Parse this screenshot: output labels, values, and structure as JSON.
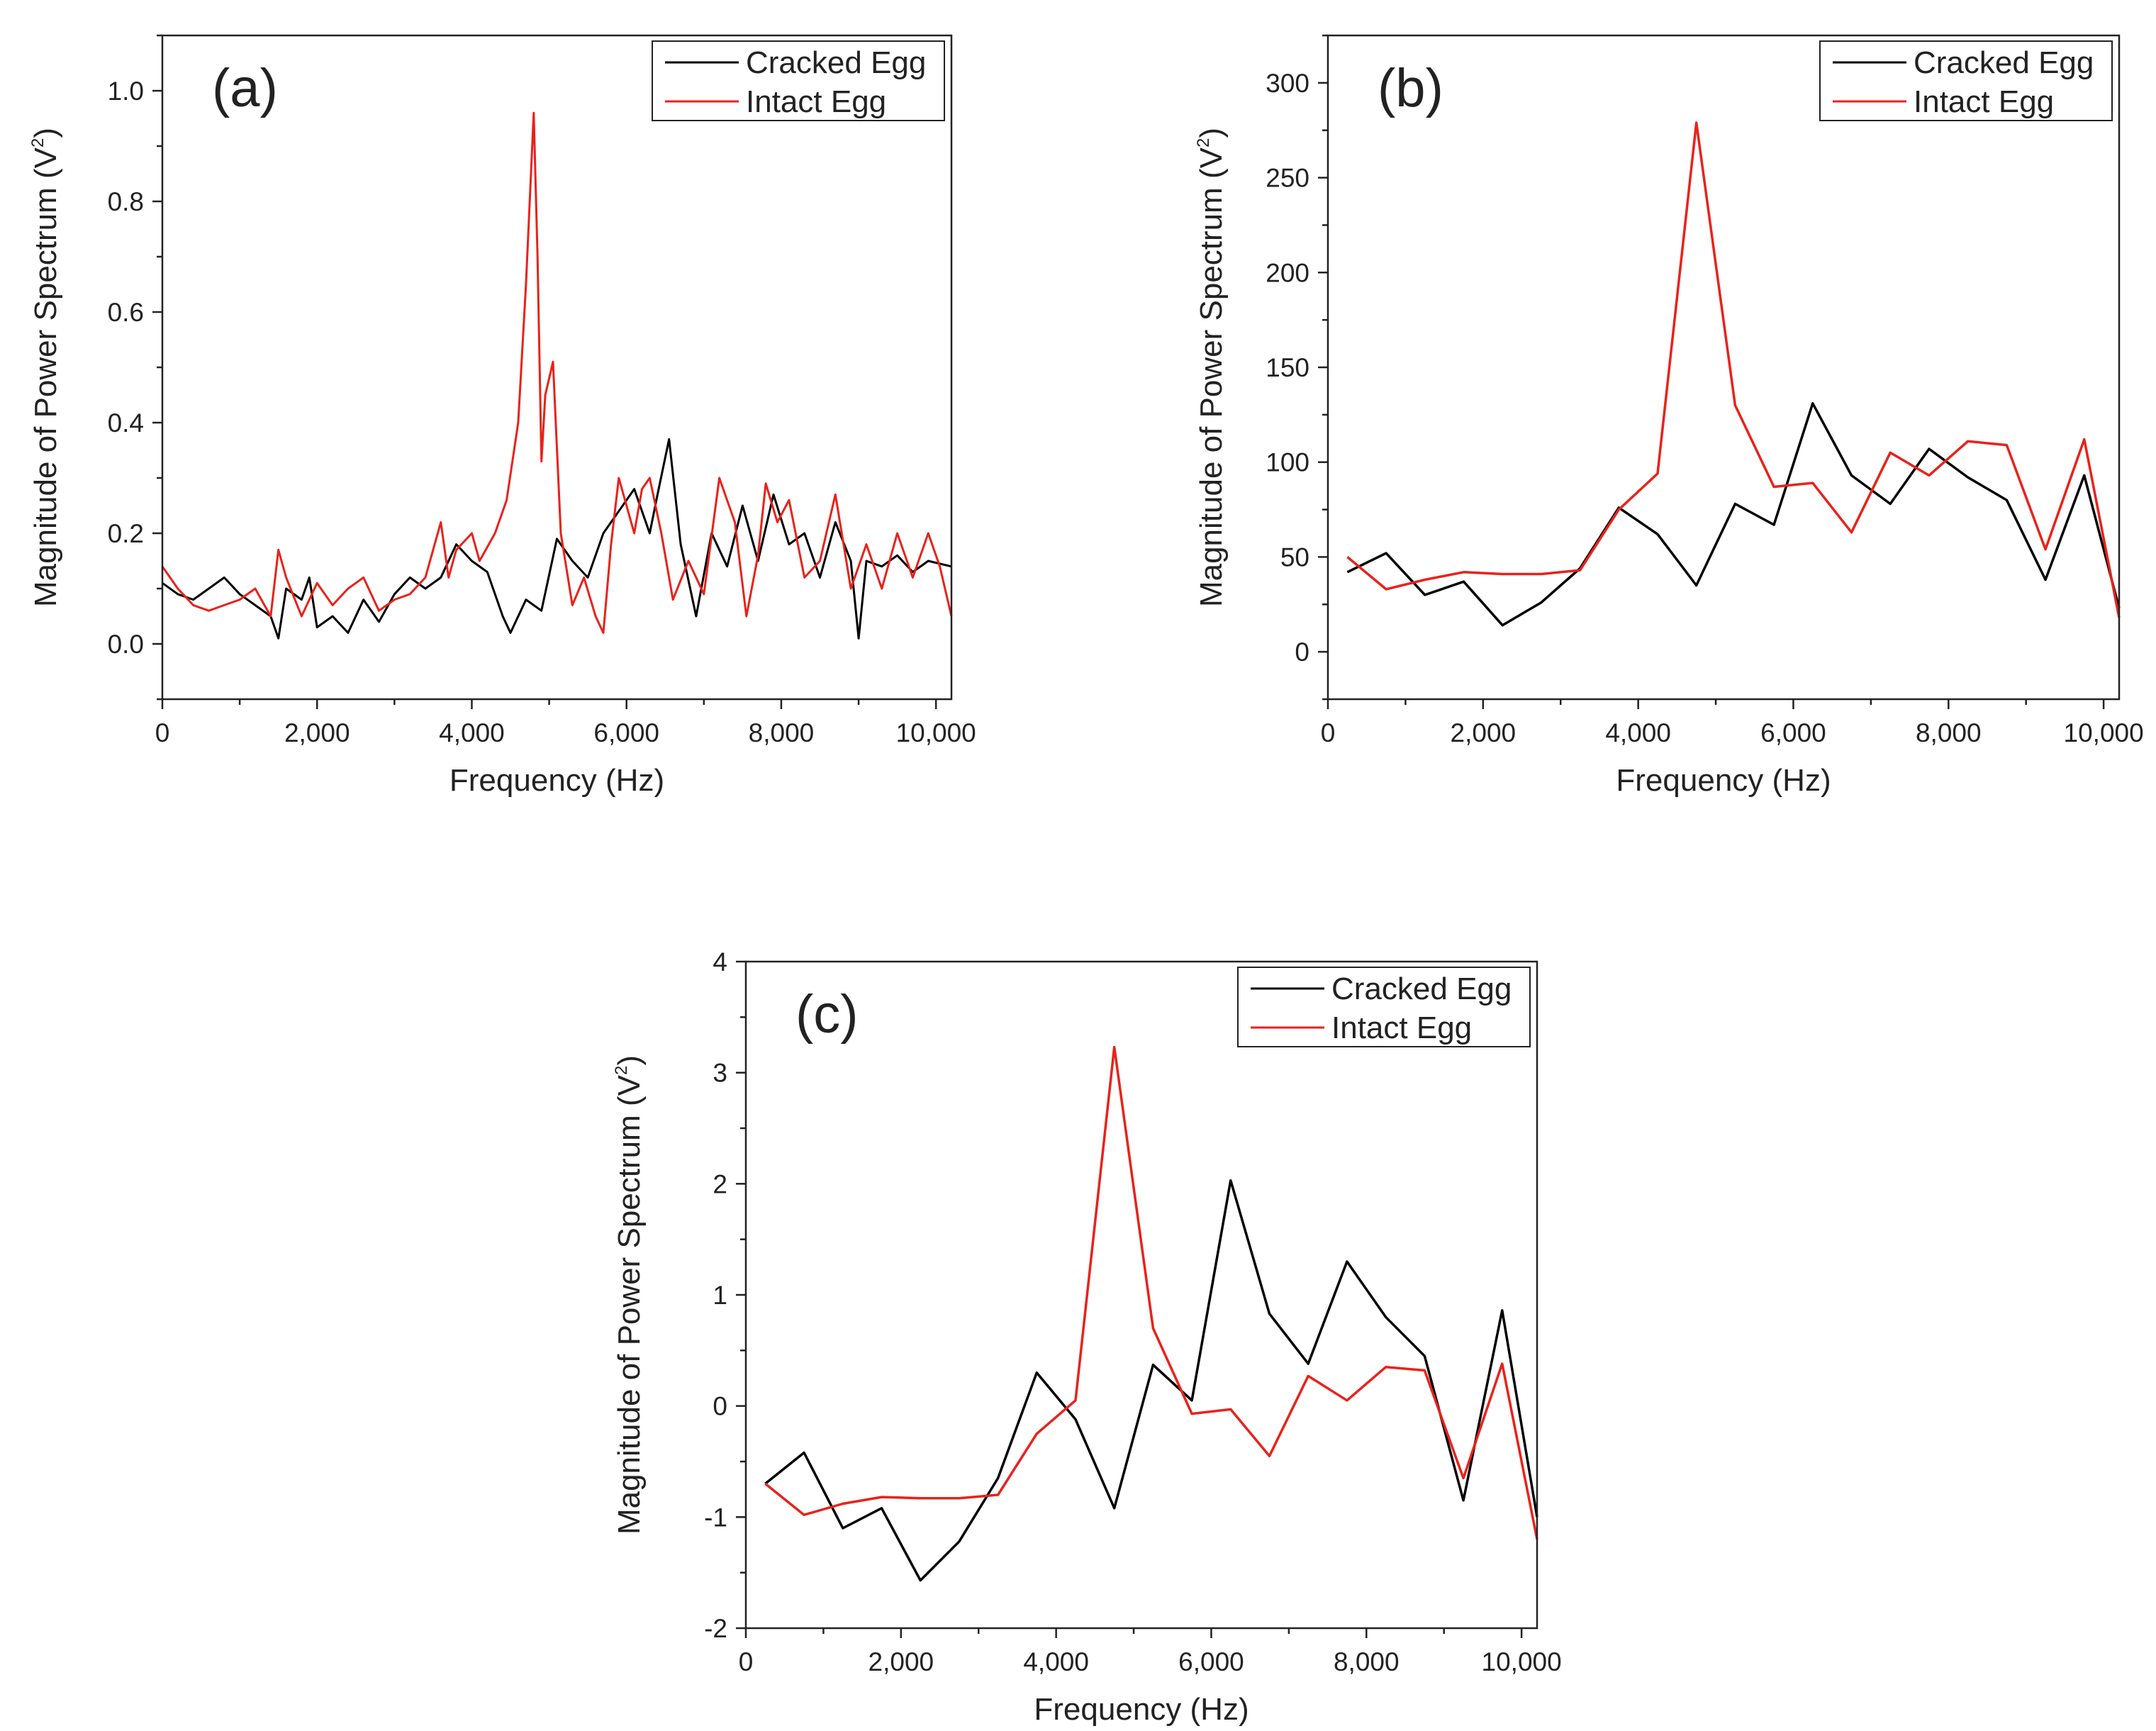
{
  "chart_data": [
    {
      "type": "line",
      "panel_label": "(a)",
      "xlabel": "Frequency (Hz)",
      "ylabel_main": "Magnitude of Power Spectrum (V",
      "ylabel_sup": "2",
      "ylabel_end": ")",
      "xlim": [
        0,
        10200
      ],
      "ylim": [
        -0.1,
        1.1
      ],
      "x_ticks": [
        0,
        2000,
        4000,
        6000,
        8000,
        10000
      ],
      "x_tick_labels": [
        "0",
        "2,000",
        "4,000",
        "6,000",
        "8,000",
        "10,000"
      ],
      "y_ticks": [
        0.0,
        0.2,
        0.4,
        0.6,
        0.8,
        1.0
      ],
      "y_tick_labels": [
        "0.0",
        "0.2",
        "0.4",
        "0.6",
        "0.8",
        "1.0"
      ],
      "legend_position": "top-right",
      "grid": false,
      "series": [
        {
          "name": "Cracked Egg",
          "color": "#000000",
          "x": [
            0,
            200,
            400,
            600,
            800,
            1000,
            1200,
            1400,
            1500,
            1600,
            1800,
            1900,
            2000,
            2200,
            2400,
            2600,
            2800,
            3000,
            3200,
            3400,
            3600,
            3800,
            4000,
            4200,
            4400,
            4500,
            4700,
            4900,
            5100,
            5300,
            5500,
            5700,
            5900,
            6100,
            6300,
            6400,
            6550,
            6700,
            6900,
            7100,
            7300,
            7500,
            7700,
            7900,
            8100,
            8300,
            8500,
            8700,
            8900,
            9000,
            9100,
            9300,
            9500,
            9700,
            9900,
            10200
          ],
          "y": [
            0.11,
            0.09,
            0.08,
            0.1,
            0.12,
            0.09,
            0.07,
            0.05,
            0.01,
            0.1,
            0.08,
            0.12,
            0.03,
            0.05,
            0.02,
            0.08,
            0.04,
            0.09,
            0.12,
            0.1,
            0.12,
            0.18,
            0.15,
            0.13,
            0.05,
            0.02,
            0.08,
            0.06,
            0.19,
            0.15,
            0.12,
            0.2,
            0.24,
            0.28,
            0.2,
            0.27,
            0.37,
            0.18,
            0.05,
            0.2,
            0.14,
            0.25,
            0.15,
            0.27,
            0.18,
            0.2,
            0.12,
            0.22,
            0.15,
            0.01,
            0.15,
            0.14,
            0.16,
            0.13,
            0.15,
            0.14
          ]
        },
        {
          "name": "Intact Egg",
          "color": "#e8221b",
          "x": [
            0,
            200,
            400,
            600,
            800,
            1000,
            1200,
            1400,
            1500,
            1600,
            1800,
            2000,
            2200,
            2400,
            2600,
            2800,
            3000,
            3200,
            3400,
            3600,
            3700,
            3800,
            4000,
            4100,
            4300,
            4450,
            4600,
            4700,
            4800,
            4850,
            4900,
            4950,
            5050,
            5150,
            5300,
            5450,
            5600,
            5700,
            5800,
            5900,
            6100,
            6200,
            6300,
            6450,
            6600,
            6800,
            7000,
            7200,
            7400,
            7550,
            7700,
            7800,
            7950,
            8100,
            8300,
            8500,
            8700,
            8900,
            9100,
            9300,
            9500,
            9700,
            9900,
            10050,
            10200
          ],
          "y": [
            0.14,
            0.1,
            0.07,
            0.06,
            0.07,
            0.08,
            0.1,
            0.05,
            0.17,
            0.12,
            0.05,
            0.11,
            0.07,
            0.1,
            0.12,
            0.06,
            0.08,
            0.09,
            0.12,
            0.22,
            0.12,
            0.17,
            0.2,
            0.15,
            0.2,
            0.26,
            0.4,
            0.65,
            0.96,
            0.7,
            0.33,
            0.45,
            0.51,
            0.2,
            0.07,
            0.12,
            0.05,
            0.02,
            0.18,
            0.3,
            0.2,
            0.28,
            0.3,
            0.2,
            0.08,
            0.15,
            0.09,
            0.3,
            0.22,
            0.05,
            0.16,
            0.29,
            0.22,
            0.26,
            0.12,
            0.15,
            0.27,
            0.1,
            0.18,
            0.1,
            0.2,
            0.12,
            0.2,
            0.14,
            0.05
          ]
        }
      ]
    },
    {
      "type": "line",
      "panel_label": "(b)",
      "xlabel": "Frequency (Hz)",
      "ylabel_main": "Magnitude of Power Spectrum (V",
      "ylabel_sup": "2",
      "ylabel_end": ")",
      "xlim": [
        0,
        10200
      ],
      "ylim": [
        -25,
        325
      ],
      "x_ticks": [
        0,
        2000,
        4000,
        6000,
        8000,
        10000
      ],
      "x_tick_labels": [
        "0",
        "2,000",
        "4,000",
        "6,000",
        "8,000",
        "10,000"
      ],
      "y_ticks": [
        0,
        50,
        100,
        150,
        200,
        250,
        300
      ],
      "y_tick_labels": [
        "0",
        "50",
        "100",
        "150",
        "200",
        "250",
        "300"
      ],
      "legend_position": "top-right",
      "grid": false,
      "series": [
        {
          "name": "Cracked Egg",
          "color": "#000000",
          "x": [
            250,
            750,
            1250,
            1750,
            2250,
            2750,
            3250,
            3750,
            4250,
            4750,
            5250,
            5750,
            6250,
            6750,
            7250,
            7750,
            8250,
            8750,
            9250,
            9750,
            10200
          ],
          "y": [
            42,
            52,
            30,
            37,
            14,
            26,
            44,
            76,
            62,
            35,
            78,
            67,
            131,
            93,
            78,
            107,
            92,
            80,
            38,
            93,
            23
          ]
        },
        {
          "name": "Intact Egg",
          "color": "#e8221b",
          "x": [
            250,
            750,
            1250,
            1750,
            2250,
            2750,
            3250,
            3750,
            4250,
            4750,
            5250,
            5750,
            6250,
            6750,
            7250,
            7750,
            8250,
            8750,
            9250,
            9750,
            10200
          ],
          "y": [
            50,
            33,
            38,
            42,
            41,
            41,
            43,
            75,
            94,
            279,
            130,
            87,
            89,
            63,
            105,
            93,
            111,
            109,
            54,
            112,
            18
          ]
        }
      ]
    },
    {
      "type": "line",
      "panel_label": "(c)",
      "xlabel": "Frequency (Hz)",
      "ylabel_main": "Magnitude of Power Spectrum (V",
      "ylabel_sup": "2",
      "ylabel_end": ")",
      "xlim": [
        0,
        10200
      ],
      "ylim": [
        -2,
        4
      ],
      "x_ticks": [
        0,
        2000,
        4000,
        6000,
        8000,
        10000
      ],
      "x_tick_labels": [
        "0",
        "2,000",
        "4,000",
        "6,000",
        "8,000",
        "10,000"
      ],
      "y_ticks": [
        -2,
        -1,
        0,
        1,
        2,
        3,
        4
      ],
      "y_tick_labels": [
        "-2",
        "-1",
        "0",
        "1",
        "2",
        "3",
        "4"
      ],
      "legend_position": "top-right",
      "grid": false,
      "series": [
        {
          "name": "Cracked Egg",
          "color": "#000000",
          "x": [
            250,
            750,
            1250,
            1750,
            2250,
            2750,
            3250,
            3750,
            4250,
            4750,
            5250,
            5750,
            6250,
            6750,
            7250,
            7750,
            8250,
            8750,
            9250,
            9750,
            10200
          ],
          "y": [
            -0.7,
            -0.42,
            -1.1,
            -0.92,
            -1.57,
            -1.22,
            -0.65,
            0.3,
            -0.12,
            -0.92,
            0.37,
            0.05,
            2.03,
            0.83,
            0.38,
            1.3,
            0.8,
            0.45,
            -0.85,
            0.86,
            -1.0
          ]
        },
        {
          "name": "Intact Egg",
          "color": "#e8221b",
          "x": [
            250,
            750,
            1250,
            1750,
            2250,
            2750,
            3250,
            3750,
            4250,
            4750,
            5250,
            5750,
            6250,
            6750,
            7250,
            7750,
            8250,
            8750,
            9250,
            9750,
            10200
          ],
          "y": [
            -0.7,
            -0.98,
            -0.88,
            -0.82,
            -0.83,
            -0.83,
            -0.8,
            -0.25,
            0.05,
            3.23,
            0.7,
            -0.07,
            -0.03,
            -0.45,
            0.27,
            0.05,
            0.35,
            0.32,
            -0.65,
            0.38,
            -1.2
          ]
        }
      ]
    }
  ]
}
